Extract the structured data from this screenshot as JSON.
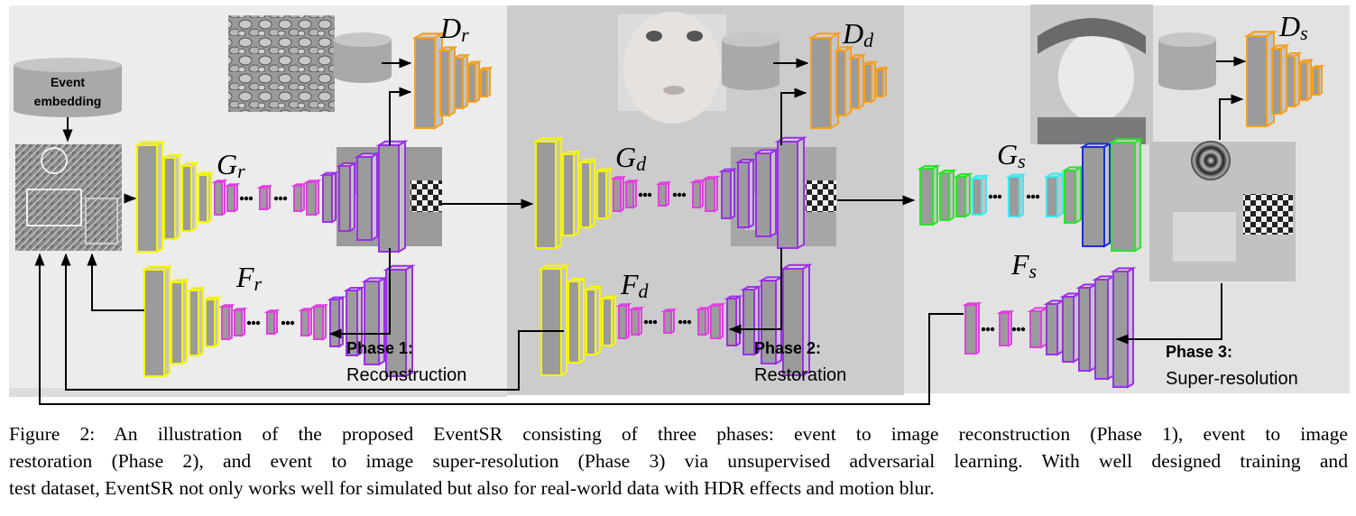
{
  "event_embedding": {
    "line1": "Event",
    "line2": "embedding"
  },
  "networks": {
    "Gr": {
      "main": "G",
      "sub": "r"
    },
    "Fr": {
      "main": "F",
      "sub": "r"
    },
    "Dr": {
      "main": "D",
      "sub": "r"
    },
    "Gd": {
      "main": "G",
      "sub": "d"
    },
    "Fd": {
      "main": "F",
      "sub": "d"
    },
    "Dd": {
      "main": "D",
      "sub": "d"
    },
    "Gs": {
      "main": "G",
      "sub": "s"
    },
    "Fs": {
      "main": "F",
      "sub": "s"
    },
    "Ds": {
      "main": "D",
      "sub": "s"
    }
  },
  "phases": [
    {
      "title": "Phase 1:",
      "name": "Reconstruction"
    },
    {
      "title": "Phase 2:",
      "name": "Restoration"
    },
    {
      "title": "Phase 3:",
      "name": "Super-resolution"
    }
  ],
  "caption": {
    "line1": "Figure 2:  An illustration of the proposed EventSR consisting of three phases:  event to image reconstruction (Phase 1), event to image",
    "line2": "restoration (Phase 2), and event to image super-resolution (Phase 3) via unsupervised adversarial learning. With well designed training and",
    "line3": "test dataset, EventSR not only works well for simulated but also for real-world data with HDR effects and motion blur."
  },
  "colors": {
    "yellow": "#f5f500",
    "magenta": "#e040e0",
    "purple": "#9a30e8",
    "orange": "#f5a020",
    "green": "#30e030",
    "cyan": "#40e8f0",
    "blue": "#1a30d0",
    "block_fill": "#9b9b9b"
  }
}
